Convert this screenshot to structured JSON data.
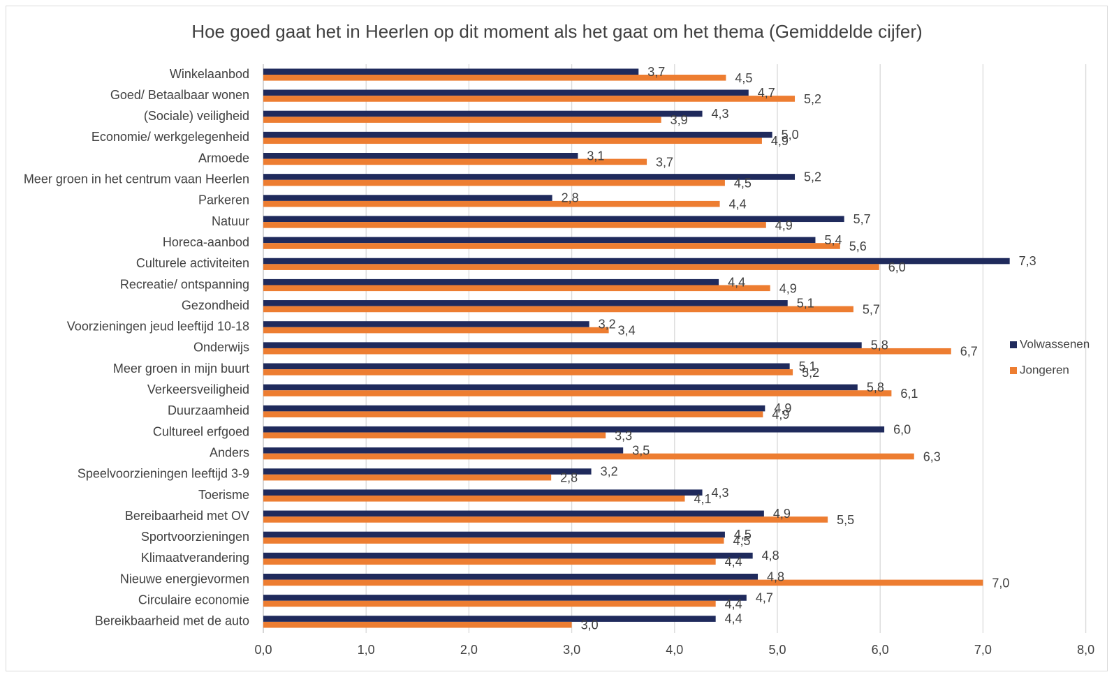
{
  "chart_data": {
    "type": "bar",
    "orientation": "horizontal",
    "title": "Hoe goed gaat het in Heerlen op dit moment als het gaat om het thema (Gemiddelde cijfer)",
    "xlim": [
      0,
      8
    ],
    "xticks": [
      "0,0",
      "1,0",
      "2,0",
      "3,0",
      "4,0",
      "5,0",
      "6,0",
      "7,0",
      "8,0"
    ],
    "grid": true,
    "legend_position": "right",
    "categories": [
      "Winkelaanbod",
      "Goed/ Betaalbaar wonen",
      "(Sociale) veiligheid",
      "Economie/ werkgelegenheid",
      "Armoede",
      "Meer groen in het centrum vaan Heerlen",
      "Parkeren",
      "Natuur",
      "Horeca-aanbod",
      "Culturele activiteiten",
      "Recreatie/ ontspanning",
      "Gezondheid",
      "Voorzieningen jeud leeftijd 10-18",
      "Onderwijs",
      "Meer groen in mijn buurt",
      "Verkeersveiligheid",
      "Duurzaamheid",
      "Cultureel erfgoed",
      "Anders",
      "Speelvoorzieningen leeftijd 3-9",
      "Toerisme",
      "Bereibaarheid met OV",
      "Sportvoorzieningen",
      "Klimaatverandering",
      "Nieuwe energievormen",
      "Circulaire economie",
      "Bereikbaarheid met de auto"
    ],
    "series": [
      {
        "name": "Volwassenen",
        "color": "#1f2a5c",
        "values": [
          3.65,
          4.72,
          4.27,
          4.95,
          3.06,
          5.17,
          2.81,
          5.65,
          5.37,
          7.26,
          4.43,
          5.1,
          3.17,
          5.82,
          5.12,
          5.78,
          4.88,
          6.04,
          3.5,
          3.19,
          4.27,
          4.87,
          4.49,
          4.76,
          4.81,
          4.7,
          4.4
        ],
        "labels": [
          "3,7",
          "4,7",
          "4,3",
          "5,0",
          "3,1",
          "5,2",
          "2,8",
          "5,7",
          "5,4",
          "7,3",
          "4,4",
          "5,1",
          "3,2",
          "5,8",
          "5,1",
          "5,8",
          "4,9",
          "6,0",
          "3,5",
          "3,2",
          "4,3",
          "4,9",
          "4,5",
          "4,8",
          "4,8",
          "4,7",
          "4,4"
        ]
      },
      {
        "name": "Jongeren",
        "color": "#ed7d31",
        "values": [
          4.5,
          5.17,
          3.87,
          4.85,
          3.73,
          4.49,
          4.44,
          4.89,
          5.61,
          5.99,
          4.93,
          5.74,
          3.36,
          6.69,
          5.15,
          6.11,
          4.86,
          3.33,
          6.33,
          2.8,
          4.1,
          5.49,
          4.48,
          4.4,
          7.0,
          4.4,
          3.0
        ],
        "labels": [
          "4,5",
          "5,2",
          "3,9",
          "4,9",
          "3,7",
          "4,5",
          "4,4",
          "4,9",
          "5,6",
          "6,0",
          "4,9",
          "5,7",
          "3,4",
          "6,7",
          "5,2",
          "6,1",
          "4,9",
          "3,3",
          "6,3",
          "2,8",
          "4,1",
          "5,5",
          "4,5",
          "4,4",
          "7,0",
          "4,4",
          "3,0"
        ]
      }
    ]
  }
}
